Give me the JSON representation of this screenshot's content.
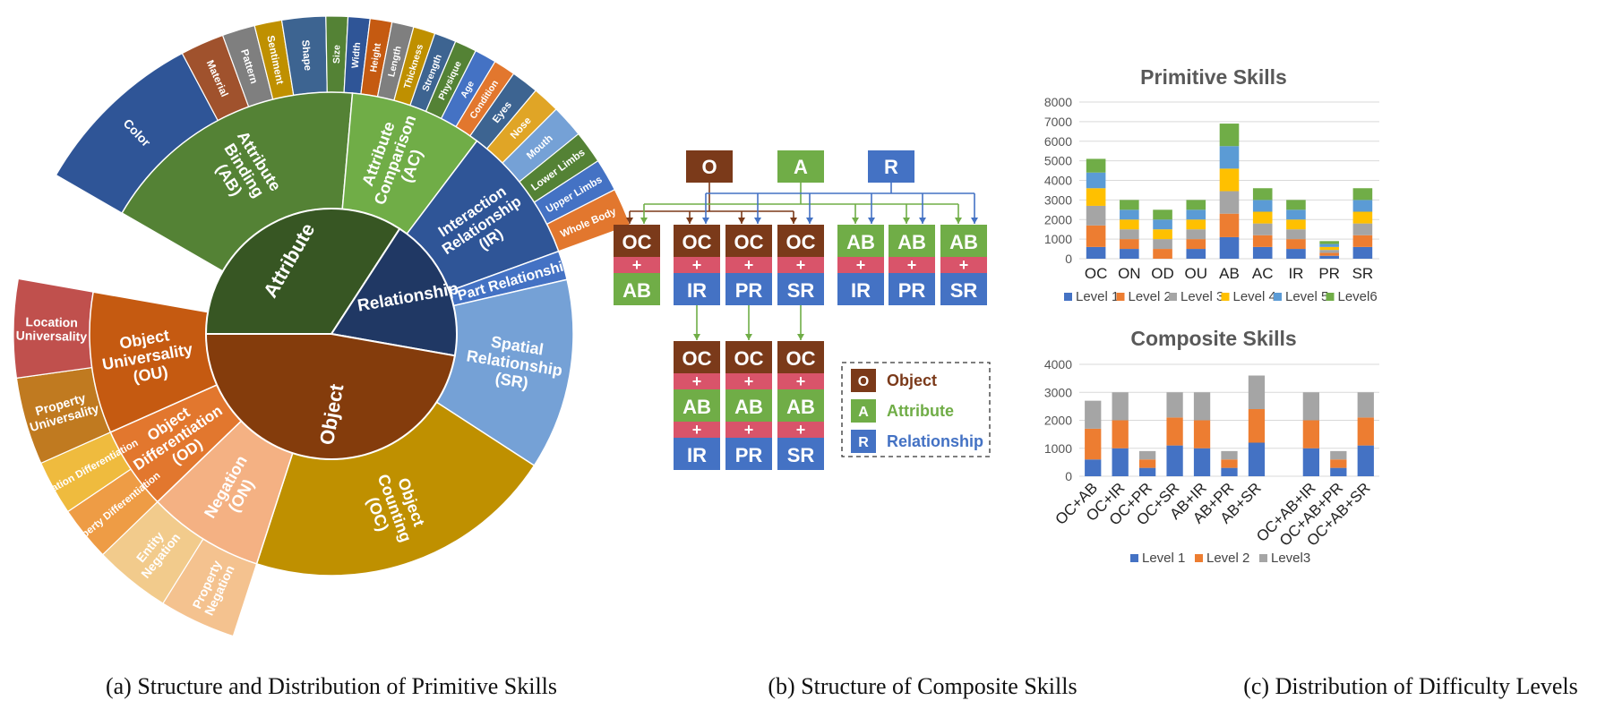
{
  "captions": {
    "a": "(a) Structure and Distribution of Primitive Skills",
    "b": "(b) Structure of Composite Skills",
    "c": "(c) Distribution of Difficulty Levels"
  },
  "colors": {
    "object": "#7B3A1A",
    "attribute": "#70AD47",
    "relationship": "#4472C4",
    "plus": "#D9546A",
    "level1": "#4472C4",
    "level2": "#ED7D31",
    "level3": "#A5A5A5",
    "level4": "#FFC000",
    "level5": "#5B9BD5",
    "level6": "#70AD47"
  },
  "sunburst": {
    "inner": [
      {
        "label": "Attribute",
        "color": "#375623"
      },
      {
        "label": "Relationship",
        "color": "#203864"
      },
      {
        "label": "Object",
        "color": "#843C0C"
      }
    ],
    "middle": [
      {
        "label": "Attribute Binding (AB)",
        "color": "#548235"
      },
      {
        "label": "Attribute Comparison (AC)",
        "color": "#70AD47"
      },
      {
        "label": "Interaction Relationship (IR)",
        "color": "#2F5597"
      },
      {
        "label": "Part Relationship (PR)",
        "color": "#4472C4"
      },
      {
        "label": "Spatial Relationship (SR)",
        "color": "#75A1D6"
      },
      {
        "label": "Object Counting (OC)",
        "color": "#BF9000"
      },
      {
        "label": "Negation (ON)",
        "color": "#F4B183"
      },
      {
        "label": "Object Differentiation (OD)",
        "color": "#E2772E"
      },
      {
        "label": "Object Universality (OU)",
        "color": "#C55A11"
      }
    ],
    "outer": [
      {
        "label": "Color",
        "color": "#2F5597"
      },
      {
        "label": "Material",
        "color": "#A0522D"
      },
      {
        "label": "Pattern",
        "color": "#7F7F7F"
      },
      {
        "label": "Sentiment",
        "color": "#BF9000"
      },
      {
        "label": "Shape",
        "color": "#3D6491"
      },
      {
        "label": "Size",
        "color": "#548235"
      },
      {
        "label": "Width",
        "color": "#2F5597"
      },
      {
        "label": "Height",
        "color": "#C55A11"
      },
      {
        "label": "Length",
        "color": "#7F7F7F"
      },
      {
        "label": "Thickness",
        "color": "#BF9000"
      },
      {
        "label": "Strength",
        "color": "#3D6491"
      },
      {
        "label": "Physique",
        "color": "#548235"
      },
      {
        "label": "Age",
        "color": "#4472C4"
      },
      {
        "label": "Condition",
        "color": "#E2772E"
      },
      {
        "label": "Eyes",
        "color": "#3D6491"
      },
      {
        "label": "Nose",
        "color": "#E0A526"
      },
      {
        "label": "Mouth",
        "color": "#75A1D6"
      },
      {
        "label": "Lower Limbs",
        "color": "#548235"
      },
      {
        "label": "Upper Limbs",
        "color": "#4472C4"
      },
      {
        "label": "Whole Body",
        "color": "#E2772E"
      },
      {
        "label": "Property Negation",
        "color": "#F4C28F"
      },
      {
        "label": "Entity Negation",
        "color": "#F2CB8C"
      },
      {
        "label": "Property Differentiation",
        "color": "#EE9C45"
      },
      {
        "label": "Location Differentiation",
        "color": "#EFBB3E"
      },
      {
        "label": "Property Universality",
        "color": "#C07A20"
      },
      {
        "label": "Location Universality",
        "color": "#C0504D"
      }
    ]
  },
  "composite": {
    "top": [
      {
        "letter": "O",
        "color": "#7B3A1A"
      },
      {
        "letter": "A",
        "color": "#70AD47"
      },
      {
        "letter": "R",
        "color": "#4472C4"
      }
    ],
    "pairs": [
      [
        "OC",
        "AB"
      ],
      [
        "OC",
        "IR"
      ],
      [
        "OC",
        "PR"
      ],
      [
        "OC",
        "SR"
      ],
      [
        "AB",
        "IR"
      ],
      [
        "AB",
        "PR"
      ],
      [
        "AB",
        "SR"
      ]
    ],
    "triples": [
      [
        "OC",
        "AB",
        "IR"
      ],
      [
        "OC",
        "AB",
        "PR"
      ],
      [
        "OC",
        "AB",
        "SR"
      ]
    ],
    "plus": "+",
    "legend": [
      {
        "letter": "O",
        "label": "Object",
        "color": "#7B3A1A"
      },
      {
        "letter": "A",
        "label": "Attribute",
        "color": "#70AD47"
      },
      {
        "letter": "R",
        "label": "Relationship",
        "color": "#4472C4"
      }
    ]
  },
  "chart_data": [
    {
      "type": "bar",
      "stacked": true,
      "title": "Primitive Skills",
      "categories": [
        "OC",
        "ON",
        "OD",
        "OU",
        "AB",
        "AC",
        "IR",
        "PR",
        "SR"
      ],
      "ylim": [
        0,
        8000
      ],
      "yticks": [
        0,
        1000,
        2000,
        3000,
        4000,
        5000,
        6000,
        7000,
        8000
      ],
      "grid": true,
      "legend_position": "bottom",
      "series": [
        {
          "name": "Level 1",
          "color": "#4472C4",
          "values": [
            600,
            500,
            0,
            500,
            1100,
            600,
            500,
            150,
            600
          ]
        },
        {
          "name": "Level 2",
          "color": "#ED7D31",
          "values": [
            1100,
            500,
            500,
            500,
            1200,
            600,
            500,
            150,
            600
          ]
        },
        {
          "name": "Level 3",
          "color": "#A5A5A5",
          "values": [
            1000,
            500,
            500,
            500,
            1150,
            600,
            500,
            150,
            600
          ]
        },
        {
          "name": "Level 4",
          "color": "#FFC000",
          "values": [
            900,
            500,
            500,
            500,
            1150,
            600,
            500,
            150,
            600
          ]
        },
        {
          "name": "Level 5",
          "color": "#5B9BD5",
          "values": [
            800,
            500,
            500,
            500,
            1150,
            600,
            500,
            150,
            600
          ]
        },
        {
          "name": "Level6",
          "color": "#70AD47",
          "values": [
            700,
            500,
            500,
            500,
            1150,
            600,
            500,
            150,
            600
          ]
        }
      ]
    },
    {
      "type": "bar",
      "stacked": true,
      "title": "Composite Skills",
      "categories": [
        "OC+AB",
        "OC+IR",
        "OC+PR",
        "OC+SR",
        "AB+IR",
        "AB+PR",
        "AB+SR",
        "",
        "OC+AB+IR",
        "OC+AB+PR",
        "OC+AB+SR"
      ],
      "ylim": [
        0,
        4000
      ],
      "yticks": [
        0,
        1000,
        2000,
        3000,
        4000
      ],
      "grid": true,
      "legend_position": "bottom",
      "series": [
        {
          "name": "Level 1",
          "color": "#4472C4",
          "values": [
            600,
            1000,
            300,
            1100,
            1000,
            300,
            1200,
            0,
            1000,
            300,
            1100
          ]
        },
        {
          "name": "Level 2",
          "color": "#ED7D31",
          "values": [
            1100,
            1000,
            300,
            1000,
            1000,
            300,
            1200,
            0,
            1000,
            300,
            1000
          ]
        },
        {
          "name": "Level3",
          "color": "#A5A5A5",
          "values": [
            1000,
            1000,
            300,
            900,
            1000,
            300,
            1200,
            0,
            1000,
            300,
            900
          ]
        }
      ]
    }
  ]
}
